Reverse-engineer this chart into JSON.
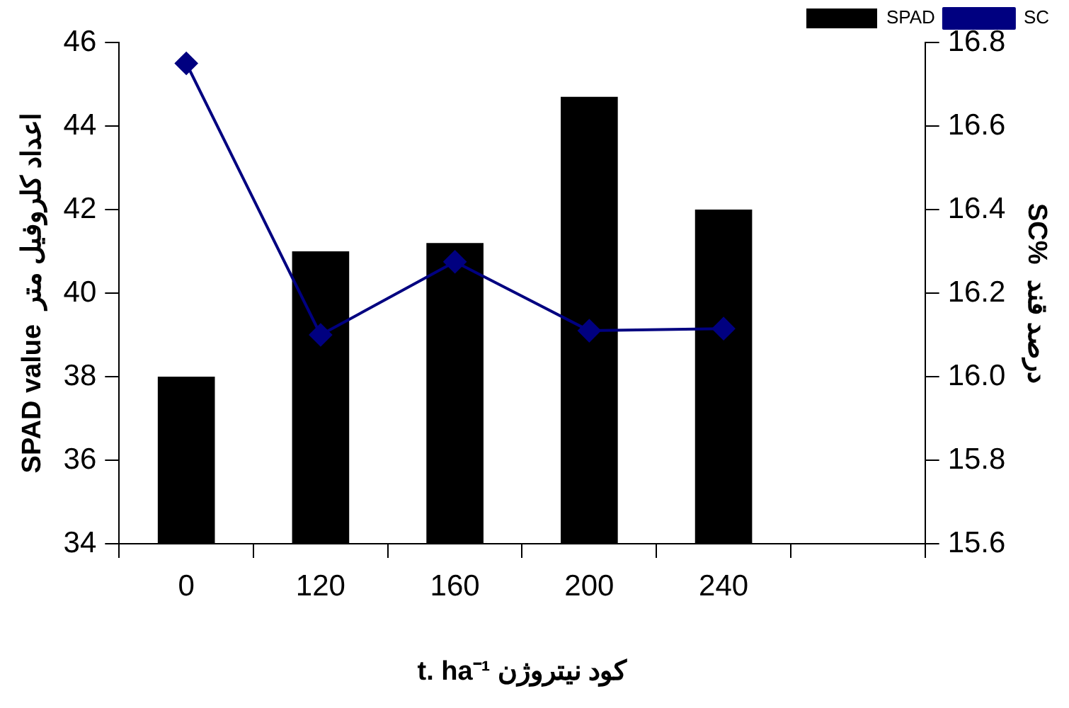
{
  "chart_data": {
    "type": "bar",
    "xlabel": "t. ha⁻¹ کود نیتروژن",
    "ylabel": "SPAD value  اعداد کلروفیل متر",
    "y2label": "SC%  درصد قند",
    "categories": [
      "0",
      "120",
      "160",
      "200",
      "240",
      null
    ],
    "series": [
      {
        "name": "SPAD",
        "color": "#000000",
        "values": [
          38,
          41,
          41.2,
          44.7,
          42,
          null
        ]
      },
      {
        "name": "SC",
        "type": "line",
        "axis": "y2",
        "color": "#000080",
        "marker": "diamond",
        "values": [
          16.75,
          16.1,
          16.275,
          16.11,
          16.115,
          null
        ]
      }
    ],
    "ylim": [
      34,
      46
    ],
    "yticks": [
      34,
      36,
      38,
      40,
      42,
      44,
      46
    ],
    "y2lim": [
      15.6,
      16.8
    ],
    "y2ticks": [
      {
        "value": 15.6,
        "label": "15.6"
      },
      {
        "value": 15.8,
        "label": "15.8"
      },
      {
        "value": 16.0,
        "label": "16.0"
      },
      {
        "value": 16.2,
        "label": "16.2"
      },
      {
        "value": 16.4,
        "label": "16.4"
      },
      {
        "value": 16.6,
        "label": "16.6"
      },
      {
        "value": 16.8,
        "label": "16.8"
      }
    ],
    "grid": false,
    "legend": "top right"
  }
}
